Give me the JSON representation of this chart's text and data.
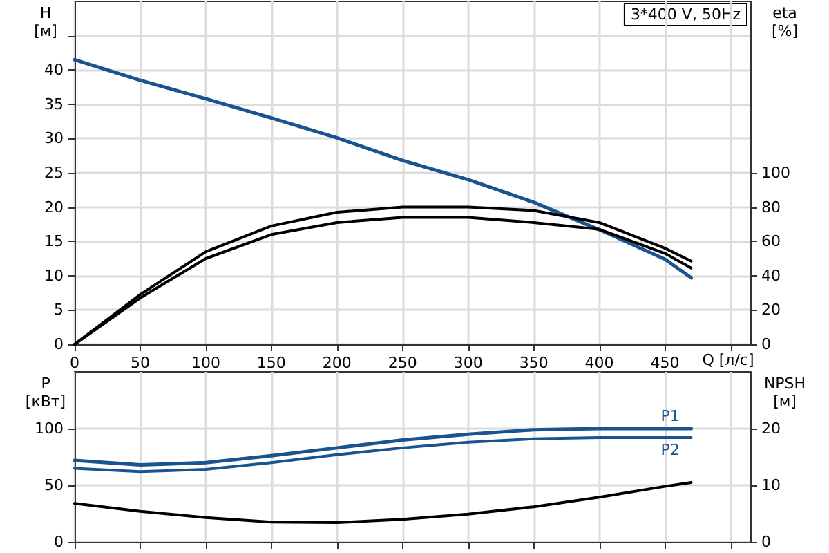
{
  "chart_data": [
    {
      "type": "line",
      "ylabel": "H\n[м]",
      "y2label": "eta\n[%]",
      "xlabel": "Q [л/с]",
      "annotations": [
        "3*400 V, 50Hz"
      ],
      "x": [
        0,
        50,
        100,
        150,
        200,
        250,
        300,
        350,
        400,
        450,
        470
      ],
      "xlim": [
        0,
        515
      ],
      "xticks": [
        0,
        50,
        100,
        150,
        200,
        250,
        300,
        350,
        400,
        450,
        {
          "value": 500,
          "label": null
        }
      ],
      "ylim": [
        0,
        50
      ],
      "yticks": [
        0,
        5,
        10,
        15,
        20,
        25,
        30,
        35,
        40,
        {
          "value": 45,
          "label": null
        }
      ],
      "y2lim": [
        0,
        200
      ],
      "y2ticks": [
        0,
        20,
        40,
        60,
        80,
        100
      ],
      "grid": true,
      "legend": false,
      "marker": "none",
      "line_style": "solid",
      "series": [
        {
          "color": "#1a5490",
          "values": [
            41.5,
            38.5,
            35.8,
            33,
            30.1,
            26.8,
            24,
            20.7,
            16.7,
            12.4,
            9.7
          ]
        },
        {
          "color": "#000000",
          "axis": "y2",
          "values": [
            0,
            29,
            54,
            69,
            77,
            80,
            80,
            78,
            71,
            56,
            48.5
          ]
        },
        {
          "color": "#000000",
          "axis": "y2",
          "values": [
            0,
            27,
            50,
            64,
            71,
            74,
            74,
            71,
            67,
            53,
            44.5
          ]
        }
      ]
    },
    {
      "type": "line",
      "ylabel": "P\n[кВт]",
      "y2label": "NPSH\n[м]",
      "x": [
        0,
        50,
        100,
        150,
        200,
        250,
        300,
        350,
        400,
        450,
        470
      ],
      "xlim": [
        0,
        515
      ],
      "xticks": [
        0,
        50,
        100,
        150,
        200,
        250,
        300,
        350,
        400,
        450,
        500
      ],
      "ylim": [
        0,
        150
      ],
      "yticks": [
        0,
        50,
        100
      ],
      "y2lim": [
        0,
        30
      ],
      "y2ticks": [
        0,
        10,
        20
      ],
      "grid": true,
      "legend": false,
      "marker": "none",
      "line_style": "solid",
      "tick_labels": "y",
      "series": [
        {
          "name": "P1",
          "color": "#1a5490",
          "values": [
            72,
            68,
            70,
            76,
            83,
            90,
            95,
            99,
            100,
            100,
            100
          ]
        },
        {
          "name": "P2",
          "color": "#1a5490",
          "values": [
            65,
            62,
            64,
            70,
            77,
            83,
            88,
            91,
            92,
            92,
            92
          ]
        },
        {
          "color": "#000000",
          "axis": "y2",
          "values": [
            6.8,
            5.4,
            4.3,
            3.5,
            3.4,
            4.0,
            4.9,
            6.2,
            7.9,
            9.8,
            10.5
          ]
        }
      ]
    }
  ]
}
